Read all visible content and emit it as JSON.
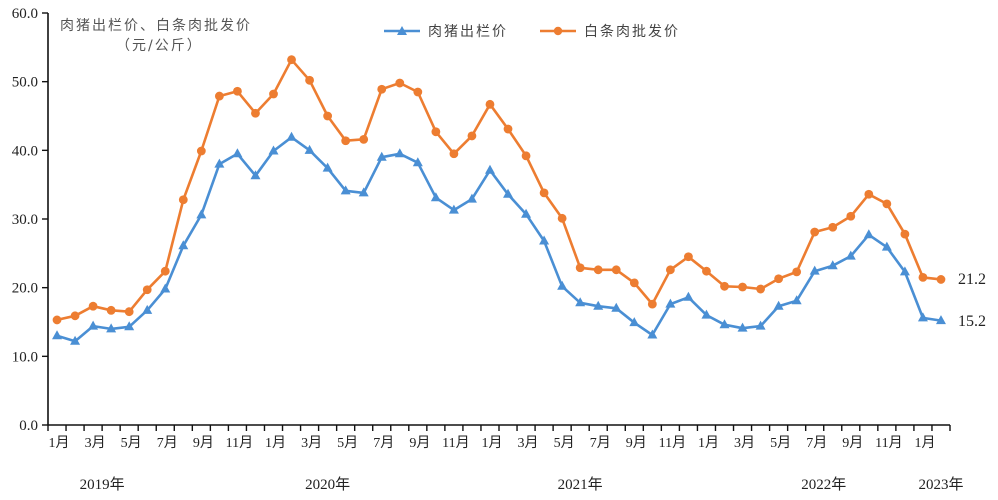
{
  "chart_data": {
    "type": "line",
    "title": "",
    "ylabel": "肉猪出栏价、白条肉批发价（元/公斤）",
    "ylabel_line1": "肉猪出栏价、白条肉批发价",
    "ylabel_line2": "（元/公斤）",
    "xlabel": "",
    "ylim": [
      0,
      60
    ],
    "yticks": [
      "0.0",
      "10.0",
      "20.0",
      "30.0",
      "40.0",
      "50.0",
      "60.0"
    ],
    "grid": false,
    "legend_position": "top-center",
    "x_tick_labels": [
      "1月",
      "3月",
      "5月",
      "7月",
      "9月",
      "11月",
      "1月",
      "3月",
      "5月",
      "7月",
      "9月",
      "11月",
      "1月",
      "3月",
      "5月",
      "7月",
      "9月",
      "11月",
      "1月",
      "3月",
      "5月",
      "7月",
      "9月",
      "11月",
      "1月"
    ],
    "year_labels": [
      {
        "label": "2019年",
        "month_index": 2.5
      },
      {
        "label": "2020年",
        "month_index": 15
      },
      {
        "label": "2021年",
        "month_index": 29
      },
      {
        "label": "2022年",
        "month_index": 42.5
      },
      {
        "label": "2023年",
        "month_index": 49
      }
    ],
    "categories": [
      "2019-01",
      "2019-02",
      "2019-03",
      "2019-04",
      "2019-05",
      "2019-06",
      "2019-07",
      "2019-08",
      "2019-09",
      "2019-10",
      "2019-11",
      "2019-12",
      "2020-01",
      "2020-02",
      "2020-03",
      "2020-04",
      "2020-05",
      "2020-06",
      "2020-07",
      "2020-08",
      "2020-09",
      "2020-10",
      "2020-11",
      "2020-12",
      "2021-01",
      "2021-02",
      "2021-03",
      "2021-04",
      "2021-05",
      "2021-06",
      "2021-07",
      "2021-08",
      "2021-09",
      "2021-10",
      "2021-11",
      "2021-12",
      "2022-01",
      "2022-02",
      "2022-03",
      "2022-04",
      "2022-05",
      "2022-06",
      "2022-07",
      "2022-08",
      "2022-09",
      "2022-10",
      "2022-11",
      "2022-12",
      "2023-01",
      "2023-02"
    ],
    "series": [
      {
        "name": "肉猪出栏价",
        "color": "#4a8fd4",
        "marker": "triangle",
        "values": [
          13.0,
          12.2,
          14.4,
          14.0,
          14.3,
          16.7,
          19.8,
          26.1,
          30.6,
          38.0,
          39.5,
          36.3,
          39.9,
          41.9,
          40.0,
          37.4,
          34.1,
          33.8,
          39.0,
          39.5,
          38.2,
          33.1,
          31.3,
          32.9,
          37.1,
          33.6,
          30.7,
          26.8,
          20.2,
          17.8,
          17.3,
          17.0,
          14.9,
          13.1,
          17.6,
          18.6,
          16.0,
          14.6,
          14.1,
          14.4,
          17.3,
          18.1,
          22.4,
          23.2,
          24.6,
          27.7,
          25.9,
          22.3,
          15.6,
          15.2
        ],
        "end_label": "15.2"
      },
      {
        "name": "白条肉批发价",
        "color": "#ed7d31",
        "marker": "circle",
        "values": [
          15.3,
          15.9,
          17.3,
          16.7,
          16.5,
          19.7,
          22.4,
          32.8,
          39.9,
          47.9,
          48.6,
          45.4,
          48.2,
          53.2,
          50.2,
          45.0,
          41.4,
          41.6,
          48.9,
          49.8,
          48.5,
          42.7,
          39.5,
          42.1,
          46.7,
          43.1,
          39.2,
          33.8,
          30.1,
          22.9,
          22.6,
          22.6,
          20.7,
          17.6,
          22.6,
          24.5,
          22.4,
          20.2,
          20.1,
          19.8,
          21.3,
          22.3,
          28.1,
          28.8,
          30.4,
          33.6,
          32.2,
          27.8,
          21.5,
          21.2
        ],
        "end_label": "21.2"
      }
    ]
  }
}
